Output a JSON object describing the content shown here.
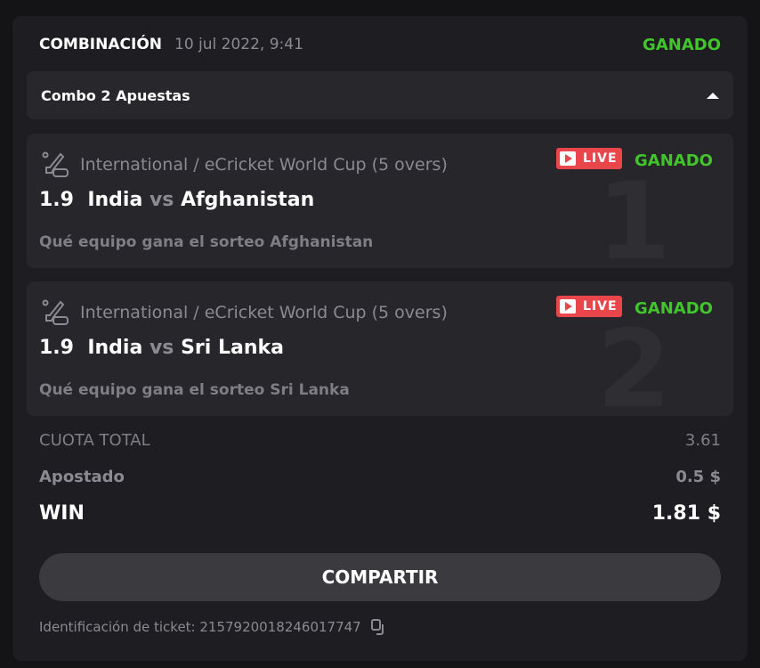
{
  "header": {
    "title": "COMBINACIÓN",
    "date": "10 jul 2022, 9:41",
    "status": "GANADO"
  },
  "combo": {
    "label": "Combo 2 Apuestas"
  },
  "bets": [
    {
      "index": "1",
      "league": "International / eCricket World Cup (5 overs)",
      "live": "LIVE",
      "status": "GANADO",
      "odds": "1.9",
      "home": "India",
      "vs": "vs",
      "away": "Afghanistan",
      "selection": "Qué equipo gana el sorteo Afghanistan"
    },
    {
      "index": "2",
      "league": "International / eCricket World Cup (5 overs)",
      "live": "LIVE",
      "status": "GANADO",
      "odds": "1.9",
      "home": "India",
      "vs": "vs",
      "away": "Sri Lanka",
      "selection": "Qué equipo gana el sorteo Sri Lanka"
    }
  ],
  "totals": {
    "odds_label": "CUOTA TOTAL",
    "odds": "3.61",
    "stake_label": "Apostado",
    "stake": "0.5 $",
    "win_label": "WIN",
    "win": "1.81 $"
  },
  "share_label": "COMPARTIR",
  "ticket": {
    "label": "Identificación de ticket: 2157920018246017747"
  },
  "colors": {
    "win": "#41c52a",
    "live": "#e8464b"
  }
}
